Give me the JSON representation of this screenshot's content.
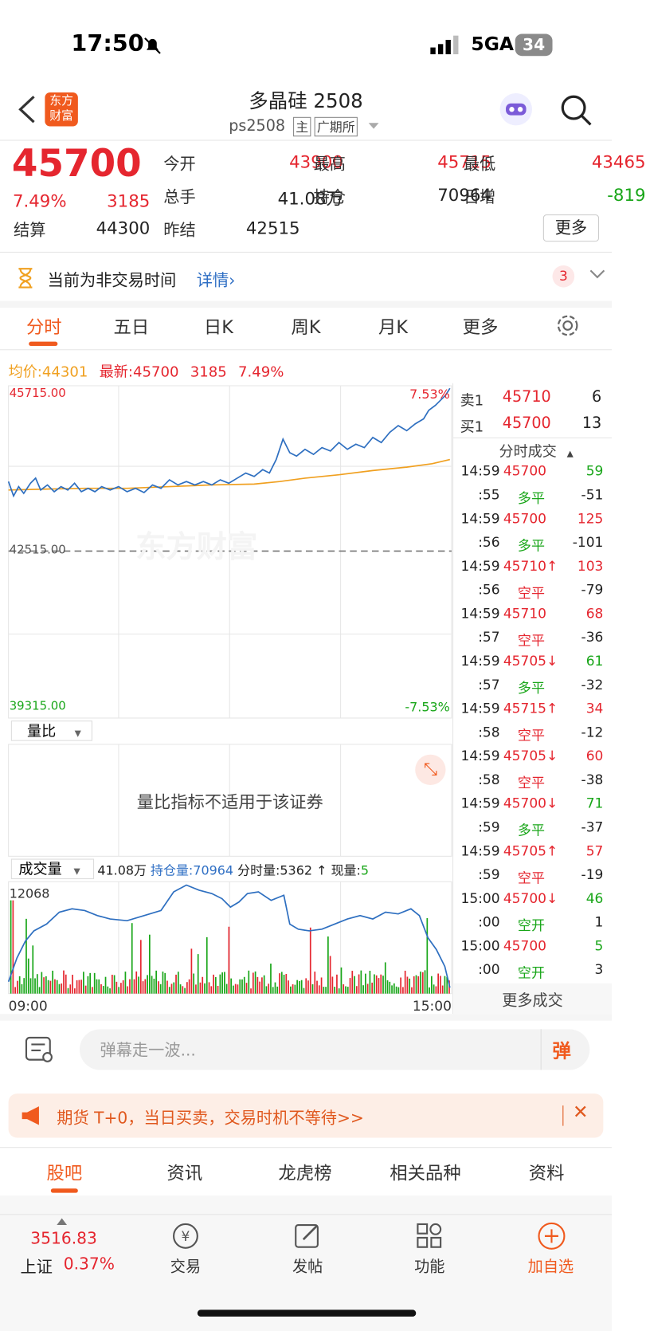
{
  "status": {
    "time": "17:50",
    "network": "5GA",
    "battery": "34"
  },
  "header": {
    "logo": [
      "东方",
      "财富"
    ],
    "title": "多晶硅 2508",
    "code": "ps2508",
    "tags": [
      "主",
      "广期所"
    ]
  },
  "quote": {
    "price": "45700",
    "pct": "7.49%",
    "change": "3185",
    "fields": [
      {
        "label": "今开",
        "value": "43900",
        "color": "#e5262f"
      },
      {
        "label": "最高",
        "value": "45715",
        "color": "#e5262f"
      },
      {
        "label": "最低",
        "value": "43465",
        "color": "#e5262f"
      },
      {
        "label": "总手",
        "value": "41.08万",
        "color": "#222"
      },
      {
        "label": "持仓",
        "value": "70964",
        "color": "#222"
      },
      {
        "label": "日增",
        "value": "-819",
        "color": "#19a619"
      },
      {
        "label": "结算",
        "value": "44300",
        "color": "#222"
      },
      {
        "label": "昨结",
        "value": "42515",
        "color": "#222"
      }
    ],
    "more": "更多"
  },
  "notice": {
    "text": "当前为非交易时间",
    "link": "详情",
    "badge": "3"
  },
  "tabs": [
    "分时",
    "五日",
    "日K",
    "周K",
    "月K",
    "更多"
  ],
  "chart": {
    "avg_label": "均价:",
    "avg": "44301",
    "latest_label": "最新:",
    "latest": "45700",
    "change": "3185",
    "pct": "7.49%",
    "y_top": "45715.00",
    "y_mid": "42515.00",
    "y_bottom": "39315.00",
    "pct_top": "7.53%",
    "pct_bottom": "-7.53%",
    "watermark": "东方财富"
  },
  "indicator": {
    "select": "量比",
    "message": "量比指标不适用于该证券"
  },
  "volume": {
    "select": "成交量",
    "total": "41.08万",
    "oi_label": "持仓量:",
    "oi": "70964",
    "fen_label": "分时量:",
    "fen": "5362",
    "arrow": "↑",
    "xian_label": "现量:",
    "xian": "5",
    "max": "12068",
    "start": "09:00",
    "end": "15:00"
  },
  "orderbook": {
    "ask": {
      "label": "卖1",
      "price": "45710",
      "qty": "6"
    },
    "bid": {
      "label": "买1",
      "price": "45700",
      "qty": "13"
    },
    "title": "分时成交",
    "trades": [
      {
        "time": "14:59",
        "price": "45700",
        "qty": "59",
        "qty_color": "#19a619",
        "sec": ":55",
        "kind": "多平",
        "kind_color": "#19a619",
        "oi": "-51"
      },
      {
        "time": "14:59",
        "price": "45700",
        "qty": "125",
        "qty_color": "#e5262f",
        "sec": ":56",
        "kind": "多平",
        "kind_color": "#19a619",
        "oi": "-101"
      },
      {
        "time": "14:59",
        "price": "45710↑",
        "qty": "103",
        "qty_color": "#e5262f",
        "sec": ":56",
        "kind": "空平",
        "kind_color": "#e5262f",
        "oi": "-79"
      },
      {
        "time": "14:59",
        "price": "45710",
        "qty": "68",
        "qty_color": "#e5262f",
        "sec": ":57",
        "kind": "空平",
        "kind_color": "#e5262f",
        "oi": "-36"
      },
      {
        "time": "14:59",
        "price": "45705↓",
        "qty": "61",
        "qty_color": "#19a619",
        "sec": ":57",
        "kind": "多平",
        "kind_color": "#19a619",
        "oi": "-32"
      },
      {
        "time": "14:59",
        "price": "45715↑",
        "qty": "34",
        "qty_color": "#e5262f",
        "sec": ":58",
        "kind": "空平",
        "kind_color": "#e5262f",
        "oi": "-12"
      },
      {
        "time": "14:59",
        "price": "45705↓",
        "qty": "60",
        "qty_color": "#e5262f",
        "sec": ":58",
        "kind": "空平",
        "kind_color": "#e5262f",
        "oi": "-38"
      },
      {
        "time": "14:59",
        "price": "45700↓",
        "qty": "71",
        "qty_color": "#19a619",
        "sec": ":59",
        "kind": "多平",
        "kind_color": "#19a619",
        "oi": "-37"
      },
      {
        "time": "14:59",
        "price": "45705↑",
        "qty": "57",
        "qty_color": "#e5262f",
        "sec": ":59",
        "kind": "空平",
        "kind_color": "#e5262f",
        "oi": "-19"
      },
      {
        "time": "15:00",
        "price": "45700↓",
        "qty": "46",
        "qty_color": "#19a619",
        "sec": ":00",
        "kind": "空开",
        "kind_color": "#19a619",
        "oi": "1"
      },
      {
        "time": "15:00",
        "price": "45700",
        "qty": "5",
        "qty_color": "#19a619",
        "sec": ":00",
        "kind": "空开",
        "kind_color": "#19a619",
        "oi": "3"
      }
    ],
    "more": "更多成交"
  },
  "comment": {
    "placeholder": "弹幕走一波...",
    "button": "弹"
  },
  "banner": {
    "text": "期货 T+0，当日买卖，交易时机不等待>>"
  },
  "subtabs": [
    "股吧",
    "资讯",
    "龙虎榜",
    "相关品种",
    "资料"
  ],
  "bottom_nav": {
    "index_price": "3516.83",
    "index_name": "上证",
    "index_pct": "0.37%",
    "items": [
      "交易",
      "发帖",
      "功能",
      "加自选"
    ]
  }
}
